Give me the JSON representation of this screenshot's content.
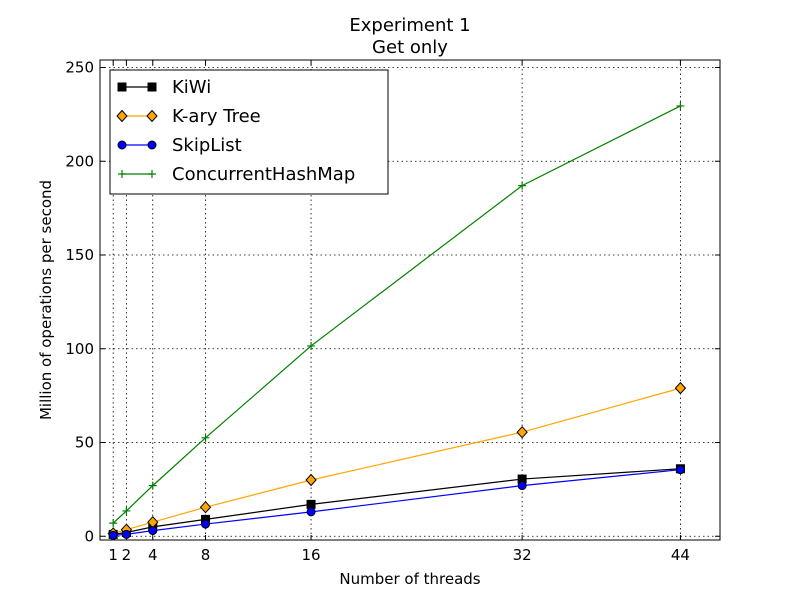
{
  "chart_data": {
    "type": "line",
    "title": "Experiment 1",
    "subtitle": "Get only",
    "xlabel": "Number of threads",
    "ylabel": "Million of operations per second",
    "xlim": [
      0,
      47
    ],
    "ylim": [
      -2,
      254
    ],
    "xticks": [
      1,
      2,
      4,
      8,
      16,
      32,
      44
    ],
    "yticks": [
      0,
      50,
      100,
      150,
      200,
      250
    ],
    "grid": true,
    "legend_position": "top-left",
    "x": [
      1,
      2,
      4,
      8,
      16,
      32,
      44
    ],
    "series": [
      {
        "name": "KiWi",
        "color": "#000000",
        "marker": "square",
        "values": [
          1,
          2,
          5,
          9,
          17,
          30.5,
          36
        ]
      },
      {
        "name": "K-ary Tree",
        "color": "#ffa500",
        "marker": "diamond",
        "values": [
          1.5,
          3.5,
          7.5,
          15.5,
          30,
          55.5,
          79
        ]
      },
      {
        "name": "SkipList",
        "color": "#0000ff",
        "marker": "circle",
        "values": [
          0.5,
          1,
          3,
          6.5,
          13,
          27,
          35.5
        ]
      },
      {
        "name": "ConcurrentHashMap",
        "color": "#008000",
        "marker": "plus",
        "values": [
          7,
          13.5,
          27,
          52.5,
          101.5,
          187,
          229.5
        ]
      }
    ]
  }
}
